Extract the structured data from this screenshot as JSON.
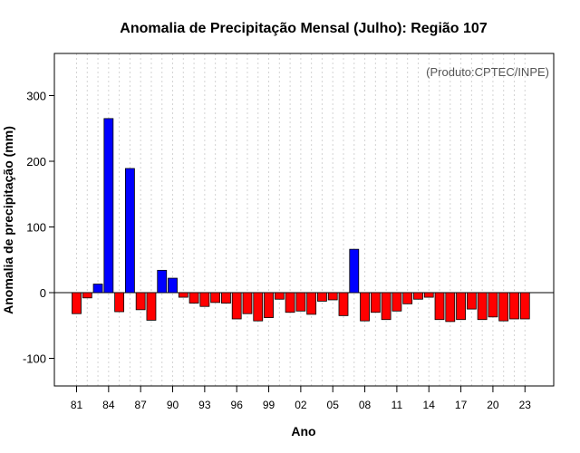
{
  "chart_data": {
    "type": "bar",
    "title": "Anomalia de Precipitação Mensal (Julho): Região 107",
    "xlabel": "Ano",
    "ylabel": "Anomalia de precipitação (mm)",
    "annotation": "(Produto:CPTEC/INPE)",
    "ylim": [
      -140,
      365
    ],
    "yticks": [
      -100,
      0,
      100,
      200,
      300
    ],
    "xtick_labels": [
      "81",
      "84",
      "87",
      "90",
      "93",
      "96",
      "99",
      "02",
      "05",
      "08",
      "11",
      "14",
      "17",
      "20",
      "23"
    ],
    "xtick_positions": [
      1981,
      1984,
      1987,
      1990,
      1993,
      1996,
      1999,
      2002,
      2005,
      2008,
      2011,
      2014,
      2017,
      2020,
      2023
    ],
    "grid": true,
    "years": [
      1981,
      1982,
      1983,
      1984,
      1985,
      1986,
      1987,
      1988,
      1989,
      1990,
      1991,
      1992,
      1993,
      1994,
      1995,
      1996,
      1997,
      1998,
      1999,
      2000,
      2001,
      2002,
      2003,
      2004,
      2005,
      2006,
      2007,
      2008,
      2009,
      2010,
      2011,
      2012,
      2013,
      2014,
      2015,
      2016,
      2017,
      2018,
      2019,
      2020,
      2021,
      2022,
      2023
    ],
    "values": [
      -32,
      -8,
      13,
      265,
      -29,
      189,
      -26,
      -42,
      34,
      22,
      -7,
      -16,
      -21,
      -15,
      -16,
      -40,
      -32,
      -43,
      -38,
      -10,
      -30,
      -28,
      -33,
      -13,
      -11,
      -35,
      66,
      -43,
      -30,
      -41,
      -28,
      -17,
      -10,
      -7,
      -41,
      -44,
      -41,
      -25,
      -41,
      -37,
      -43,
      -40,
      -40
    ],
    "colors": {
      "positive": "#0000ff",
      "negative": "#ff0000"
    }
  }
}
